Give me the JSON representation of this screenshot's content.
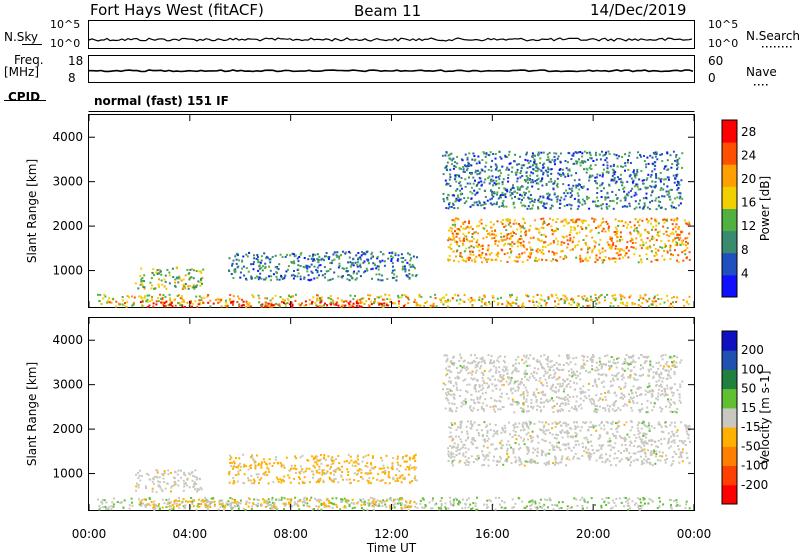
{
  "header": {
    "station": "Fort Hays West (fitACF)",
    "beam": "Beam 11",
    "date": "14/Dec/2019"
  },
  "top_panels": {
    "nsky_label": "N.Sky",
    "nsky_ticks": [
      "10^5",
      "10^0"
    ],
    "nsearch_label": "N.Search",
    "nsearch_ticks": [
      "10^5",
      "10^0"
    ],
    "freq_label": "Freq.",
    "freq_unit": "[MHz]",
    "freq_ticks": [
      "18",
      "8"
    ],
    "nave_label": "Nave",
    "nave_ticks": [
      "60",
      "0"
    ],
    "cpid_label": "CPID",
    "cpid_text": "normal (fast) 151 IF"
  },
  "colors": {
    "power_scale": [
      "#1010ff",
      "#2050c0",
      "#3a8a70",
      "#50b040",
      "#f0d000",
      "#ffa000",
      "#ff5000",
      "#ff0000"
    ],
    "velocity_scale": [
      "#ff0000",
      "#ff4000",
      "#ff8000",
      "#ffb000",
      "#c8c8c0",
      "#60c030",
      "#208040",
      "#2050b0",
      "#1010c0"
    ]
  },
  "chart_data": [
    {
      "type": "heatmap",
      "title": "",
      "xlabel": "",
      "ylabel": "Slant Range [km]",
      "x_ticks": [
        "00:00",
        "04:00",
        "08:00",
        "12:00",
        "16:00",
        "20:00",
        "00:00"
      ],
      "y_ticks": [
        "1000",
        "2000",
        "3000",
        "4000"
      ],
      "xlim_hours": [
        0,
        24
      ],
      "ylim_km": [
        180,
        4500
      ],
      "colorbar": {
        "label": "Power [dB]",
        "ticks": [
          "4",
          "8",
          "12",
          "16",
          "20",
          "24",
          "28"
        ],
        "range": [
          0,
          30
        ]
      },
      "regions": [
        {
          "name": "near-range ground scatter",
          "t0": 0.3,
          "t1": 23.8,
          "r0": 200,
          "r1": 480,
          "value": 18
        },
        {
          "name": "near-range strong echo",
          "t0": 2.0,
          "t1": 13.0,
          "r0": 200,
          "r1": 330,
          "value": 28
        },
        {
          "name": "morning patch",
          "t0": 1.8,
          "t1": 4.5,
          "r0": 600,
          "r1": 1100,
          "value": 14
        },
        {
          "name": "rising band",
          "t0": 5.5,
          "t1": 13.0,
          "r0": 800,
          "r1": 1450,
          "value": 8
        },
        {
          "name": "afternoon evening band",
          "t0": 14.2,
          "t1": 23.8,
          "r0": 1200,
          "r1": 2200,
          "value": 20
        },
        {
          "name": "sparse high range",
          "t0": 14.0,
          "t1": 23.5,
          "r0": 2400,
          "r1": 3700,
          "value": 8
        }
      ]
    },
    {
      "type": "heatmap",
      "title": "",
      "xlabel": "Time UT",
      "ylabel": "Slant Range [km]",
      "x_ticks": [
        "00:00",
        "04:00",
        "08:00",
        "12:00",
        "16:00",
        "20:00",
        "00:00"
      ],
      "y_ticks": [
        "1000",
        "2000",
        "3000",
        "4000"
      ],
      "xlim_hours": [
        0,
        24
      ],
      "ylim_km": [
        180,
        4500
      ],
      "colorbar": {
        "label": "Velocity [m s-1]",
        "ticks": [
          "200",
          "100",
          "50",
          "15",
          "-15",
          "-50",
          "-100",
          "-200"
        ],
        "range": [
          -250,
          250
        ]
      },
      "regions": [
        {
          "name": "near-range ground scatter",
          "t0": 0.3,
          "t1": 23.8,
          "r0": 200,
          "r1": 480,
          "value": 20
        },
        {
          "name": "morning near echo",
          "t0": 2.0,
          "t1": 13.0,
          "r0": 250,
          "r1": 450,
          "value": -40
        },
        {
          "name": "morning patch",
          "t0": 1.8,
          "t1": 4.5,
          "r0": 600,
          "r1": 1100,
          "value": 0
        },
        {
          "name": "rising band",
          "t0": 5.5,
          "t1": 13.0,
          "r0": 800,
          "r1": 1450,
          "value": -40
        },
        {
          "name": "afternoon evening band",
          "t0": 14.2,
          "t1": 23.8,
          "r0": 1200,
          "r1": 2200,
          "value": 0
        },
        {
          "name": "sparse high range",
          "t0": 14.0,
          "t1": 23.5,
          "r0": 2400,
          "r1": 3700,
          "value": 0
        }
      ]
    }
  ]
}
